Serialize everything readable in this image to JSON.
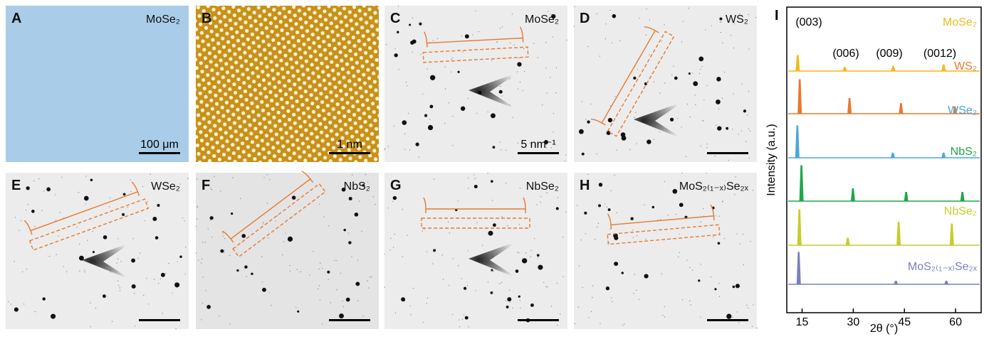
{
  "panels": [
    {
      "letter": "A",
      "label": "MoSe₂",
      "scale": "100 μm"
    },
    {
      "letter": "B",
      "scale": "1 nm"
    },
    {
      "letter": "C",
      "label": "MoSe₂",
      "scale": "5 nm⁻¹"
    },
    {
      "letter": "D",
      "label": "WS₂"
    },
    {
      "letter": "E",
      "label": "WSe₂"
    },
    {
      "letter": "F",
      "label": "NbS₂"
    },
    {
      "letter": "G",
      "label": "NbSe₂"
    },
    {
      "letter": "H",
      "label": "MoS₂₍₁₋ₓ₎Se₂ₓ"
    }
  ],
  "xrd": {
    "letter": "I",
    "y_label": "Intensity (a.u.)",
    "x_label": "2θ (°)",
    "xlim": [
      10.5,
      67.5
    ],
    "xticks": [
      15,
      30,
      45,
      60
    ],
    "peak_labels": [
      "(003)",
      "(006)",
      "(009)",
      "(0012)"
    ],
    "series": [
      {
        "name": "MoSe₂",
        "color": "#f2b81d",
        "peaks": [
          13.7,
          27.5,
          41.7,
          56.5
        ],
        "heights": [
          1.0,
          0.25,
          0.3,
          0.4
        ]
      },
      {
        "name": "WS₂",
        "color": "#e8792e",
        "peaks": [
          14.3,
          28.9,
          44.0,
          59.8
        ],
        "heights": [
          1.0,
          0.45,
          0.3,
          0.2
        ]
      },
      {
        "name": "WSe₂",
        "color": "#4aa8d8",
        "peaks": [
          13.6,
          41.6,
          56.5
        ],
        "heights": [
          1.0,
          0.15,
          0.15
        ]
      },
      {
        "name": "NbS₂",
        "color": "#1fa64a",
        "peaks": [
          14.8,
          29.9,
          45.5,
          62.0
        ],
        "heights": [
          1.0,
          0.35,
          0.25,
          0.25
        ]
      },
      {
        "name": "NbSe₂",
        "color": "#c8cc2a",
        "peaks": [
          14.2,
          28.4,
          43.3,
          58.9
        ],
        "heights": [
          1.0,
          0.2,
          0.65,
          0.6
        ]
      },
      {
        "name": "MoS₂₍₁₋ₓ₎Se₂ₓ",
        "color": "#7a7fc0",
        "peaks": [
          14.0,
          42.5,
          57.3
        ],
        "heights": [
          1.0,
          0.1,
          0.1
        ]
      }
    ]
  }
}
